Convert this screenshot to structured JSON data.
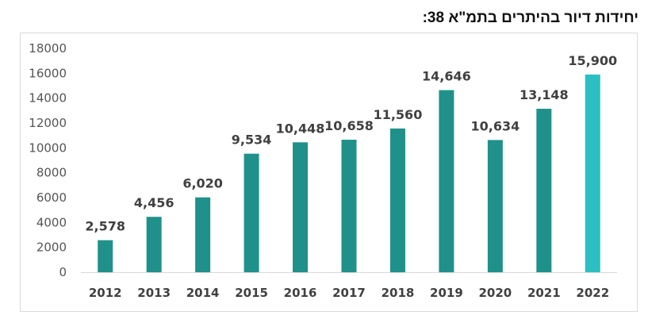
{
  "chart_data": {
    "type": "bar",
    "title": "יחידות דיור בהיתרים בתמ\"א 38:",
    "xlabel": "",
    "ylabel": "",
    "categories": [
      "2012",
      "2013",
      "2014",
      "2015",
      "2016",
      "2017",
      "2018",
      "2019",
      "2020",
      "2021",
      "2022"
    ],
    "values": [
      2578,
      4456,
      6020,
      9534,
      10448,
      10658,
      11560,
      14646,
      10634,
      13148,
      15900
    ],
    "data_labels": [
      "2,578",
      "4,456",
      "6,020",
      "9,534",
      "10,448",
      "10,658",
      "11,560",
      "14,646",
      "10,634",
      "13,148",
      "15,900"
    ],
    "y_ticks": [
      "0",
      "2000",
      "4000",
      "6000",
      "8000",
      "10000",
      "12000",
      "14000",
      "16000",
      "18000"
    ],
    "ylim": [
      0,
      18000
    ],
    "grid": false,
    "legend": "none",
    "colors": {
      "bar": "#1f918a",
      "highlight": "#2bbfc1",
      "text": "#404040",
      "axis": "#d9d9d9"
    },
    "highlight_index": 10
  }
}
